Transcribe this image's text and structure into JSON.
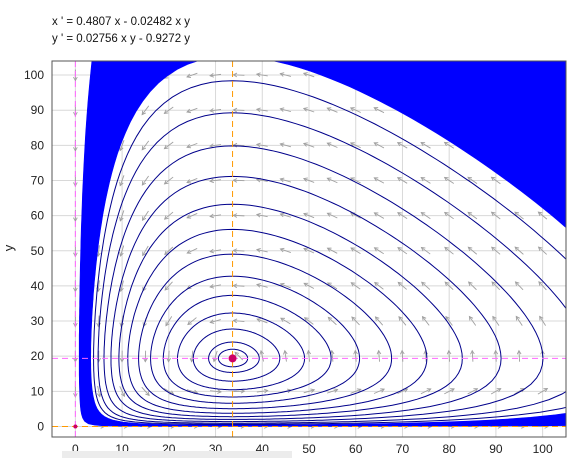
{
  "equations": {
    "x_eq": "x ' = 0.4807 x - 0.02482 x y",
    "y_eq": "y ' = 0.02756 x y - 0.9272 y"
  },
  "colors": {
    "band": "#0000ff",
    "orbit": "#00008b",
    "equilibrium_point": "#cc0066",
    "nullcline_x": "#ff9900",
    "nullcline_y": "#ff66ff",
    "arrows": "#a0a0a0",
    "grid": "#d8d8d8"
  },
  "chart_data": {
    "type": "phase-portrait",
    "title": "",
    "xlabel": "",
    "ylabel": "y",
    "xlim": [
      -5,
      105
    ],
    "ylim": [
      -3,
      104
    ],
    "xticks": [
      0,
      10,
      20,
      30,
      40,
      50,
      60,
      70,
      80,
      90,
      100
    ],
    "yticks": [
      0,
      10,
      20,
      30,
      40,
      50,
      60,
      70,
      80,
      90,
      100
    ],
    "grid": true,
    "parameters": {
      "a": 0.4807,
      "b": 0.02482,
      "c": 0.02756,
      "d": 0.9272
    },
    "equilibria": [
      {
        "x": 0,
        "y": 0
      },
      {
        "x": 33.64,
        "y": 19.37
      }
    ],
    "nullclines": [
      {
        "kind": "vertical",
        "x": 33.64
      },
      {
        "kind": "vertical",
        "x": 0
      },
      {
        "kind": "horizontal",
        "y": 19.37
      },
      {
        "kind": "horizontal",
        "y": 0
      }
    ],
    "filled_band": {
      "outer_extent": {
        "x": [
          7.5,
          93.5
        ],
        "y": [
          2.5,
          73.5
        ]
      },
      "inner_extent": {
        "x": [
          12.5,
          74
        ],
        "y": [
          6.5,
          53.5
        ]
      }
    },
    "orbit_levels": [
      5.5,
      5.2,
      4.9,
      4.5,
      4.1,
      3.6,
      3.0,
      2.3,
      1.5,
      0.8,
      0.3,
      0.1
    ],
    "vector_field": {
      "x_step": 10,
      "y_step": 10
    }
  }
}
